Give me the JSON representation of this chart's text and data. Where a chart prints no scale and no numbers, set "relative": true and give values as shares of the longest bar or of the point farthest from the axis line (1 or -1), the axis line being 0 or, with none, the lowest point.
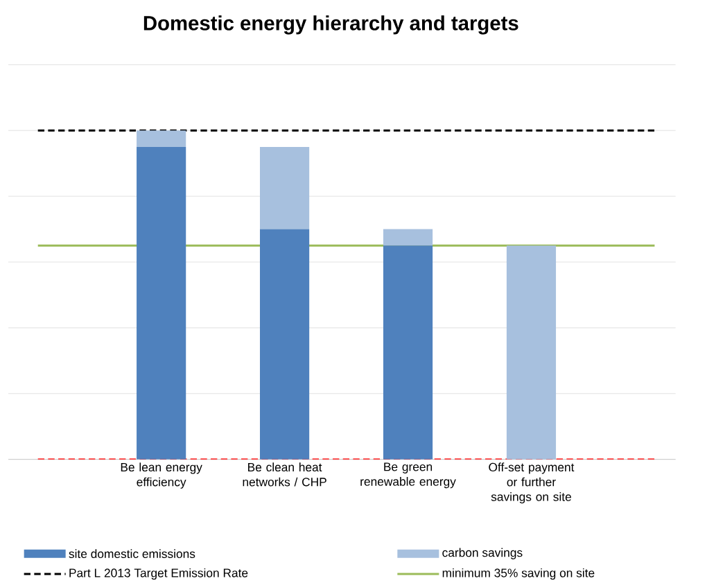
{
  "chart_data": {
    "type": "bar",
    "title": "Domestic energy hierarchy and targets",
    "relative": true,
    "stacked": true,
    "grid": "y",
    "legend": "bottom",
    "categories": [
      "Be lean energy efficiency",
      "Be clean heat networks / CHP",
      "Be green renewable energy",
      "Off-set payment or further savings on site"
    ],
    "series": [
      {
        "name": "site domestic emissions",
        "color": "#4f81bd",
        "values": [
          0.95,
          0.7,
          0.65,
          0
        ]
      },
      {
        "name": "carbon savings",
        "color": "#a7c0de",
        "values": [
          0.05,
          0.25,
          0.05,
          0.65
        ]
      }
    ],
    "ref_lines": [
      {
        "axis": "y",
        "value": 0,
        "color": "#ff0000",
        "line_style": "dashed"
      },
      {
        "axis": "y",
        "value": 1,
        "label": "Part L 2013 Target Emission Rate",
        "color": "#000000",
        "line_style": "dashed"
      },
      {
        "axis": "y",
        "value": 0.65,
        "label": "minimum 35% saving on site",
        "color": "#9bbb59",
        "line_style": "solid"
      }
    ]
  }
}
